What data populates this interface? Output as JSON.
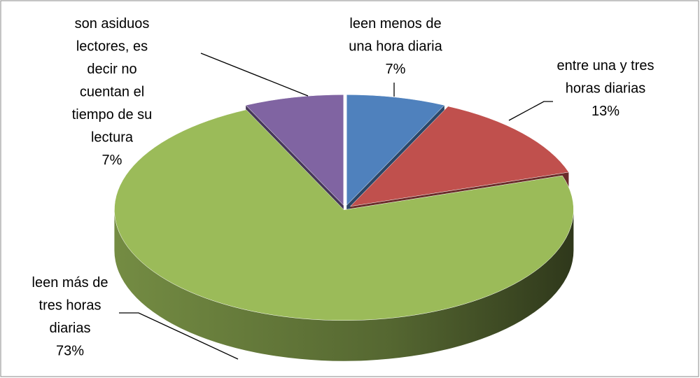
{
  "chart_data": {
    "type": "pie",
    "categories": [
      "leen menos de una hora diaria",
      "entre una y tres horas diarias",
      "leen más de tres horas diarias",
      "son asiduos lectores, es decir no cuentan el tiempo de su lectura"
    ],
    "values": [
      7,
      13,
      73,
      7
    ],
    "value_labels": [
      "7%",
      "13%",
      "73%",
      "7%"
    ],
    "colors": [
      "#4f81bd",
      "#c0504d",
      "#9bbb59",
      "#8064a2"
    ]
  }
}
